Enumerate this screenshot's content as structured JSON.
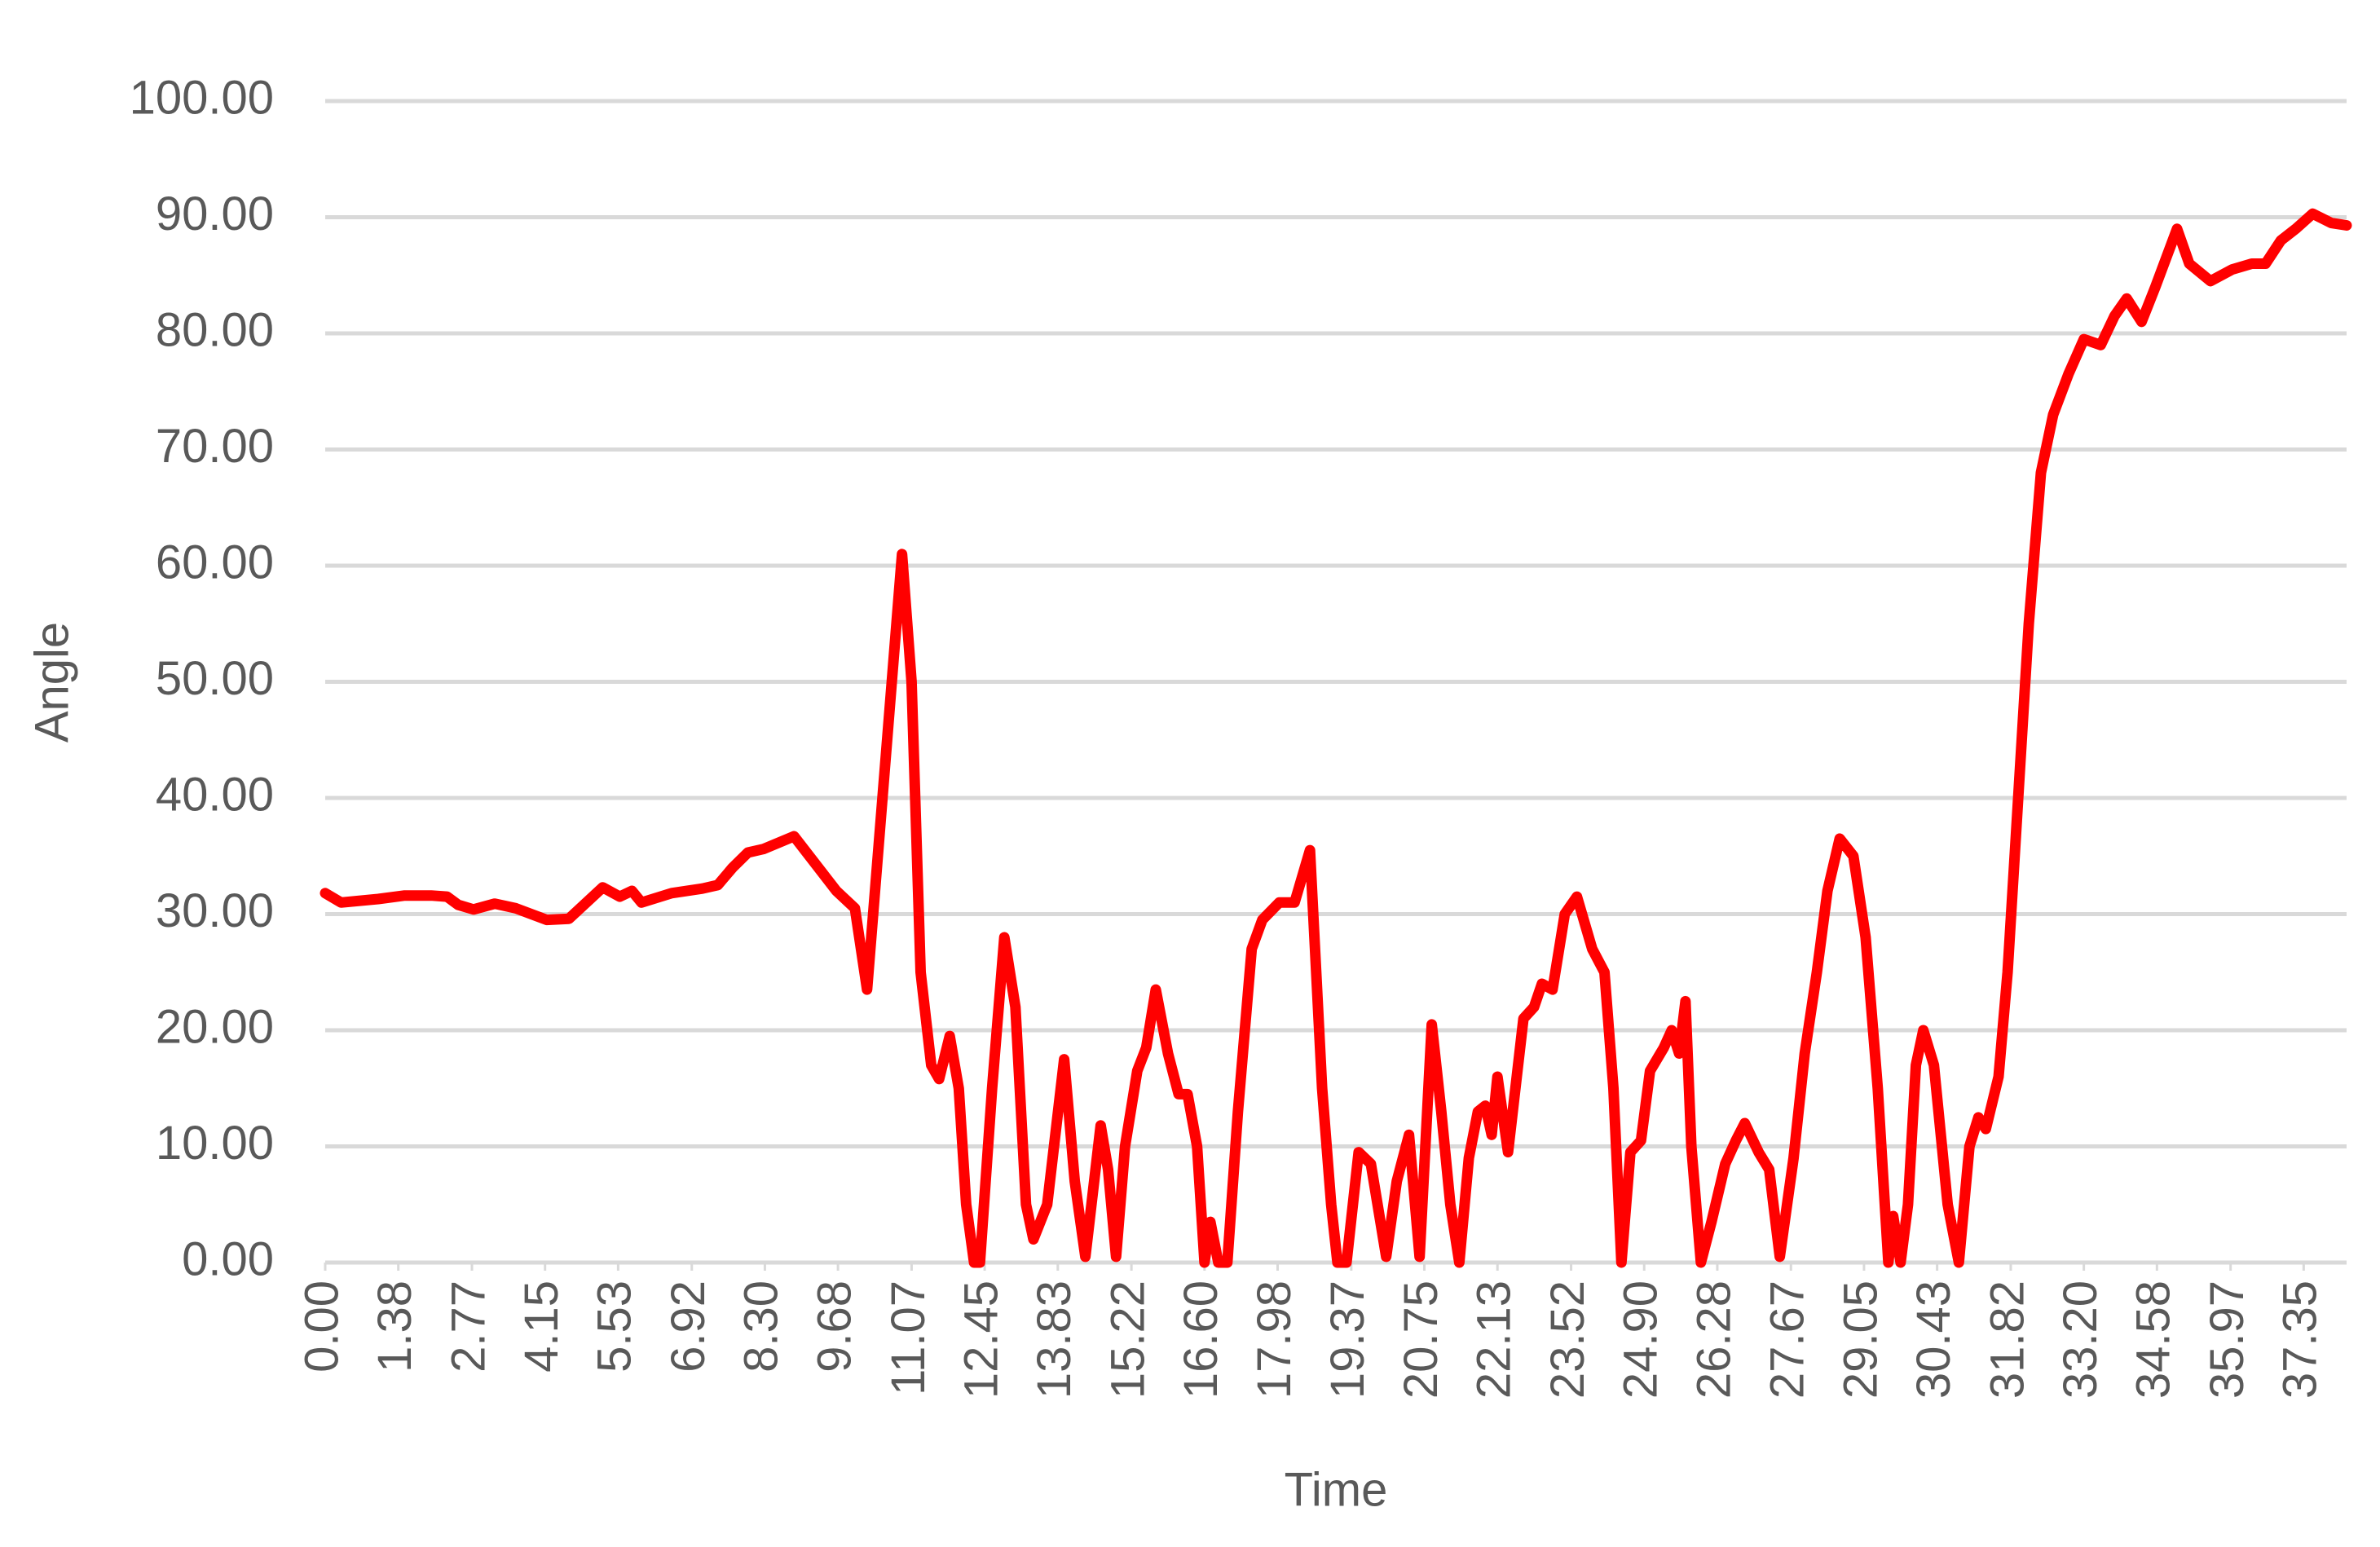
{
  "chart_data": {
    "type": "line",
    "x_label": "Time",
    "y_label": "Angle",
    "color": "#ff0000",
    "grid": true,
    "xlim": [
      0,
      38.16
    ],
    "ylim": [
      0,
      100
    ],
    "yticks": [
      {
        "value": 0,
        "label": "0.00"
      },
      {
        "value": 10,
        "label": "10.00"
      },
      {
        "value": 20,
        "label": "20.00"
      },
      {
        "value": 30,
        "label": "30.00"
      },
      {
        "value": 40,
        "label": "40.00"
      },
      {
        "value": 50,
        "label": "50.00"
      },
      {
        "value": 60,
        "label": "60.00"
      },
      {
        "value": 70,
        "label": "70.00"
      },
      {
        "value": 80,
        "label": "80.00"
      },
      {
        "value": 90,
        "label": "90.00"
      },
      {
        "value": 100,
        "label": "100.00"
      }
    ],
    "xticks": [
      {
        "value": 0,
        "label": "0.00"
      },
      1.38,
      2.77,
      4.15,
      5.53,
      6.92,
      {
        "value": 8.3,
        "label": "8.30"
      },
      9.68,
      11.07,
      12.45,
      13.83,
      15.22,
      {
        "value": 16.6,
        "label": "16.60"
      },
      17.98,
      19.37,
      20.75,
      22.13,
      23.52,
      {
        "value": 24.9,
        "label": "24.90"
      },
      26.28,
      27.67,
      29.05,
      30.43,
      31.82,
      {
        "value": 33.2,
        "label": "33.20"
      },
      34.58,
      35.97,
      37.35
    ],
    "x": [
      0,
      0.3,
      1.0,
      1.5,
      2.0,
      2.3,
      2.51,
      2.8,
      3.2,
      3.6,
      4.18,
      4.6,
      5.24,
      5.56,
      5.79,
      5.97,
      6.54,
      7.12,
      7.41,
      7.69,
      7.98,
      8.27,
      8.85,
      9.65,
      10.0,
      10.23,
      10.52,
      10.89,
      11.07,
      11.24,
      11.44,
      11.59,
      11.79,
      11.96,
      12.1,
      12.25,
      12.36,
      12.59,
      12.82,
      13.03,
      13.23,
      13.37,
      13.63,
      13.95,
      14.15,
      14.35,
      14.64,
      14.78,
      14.93,
      15.1,
      15.33,
      15.5,
      15.68,
      15.91,
      16.11,
      16.28,
      16.46,
      16.6,
      16.71,
      16.86,
      17.03,
      17.23,
      17.49,
      17.69,
      18.01,
      18.3,
      18.59,
      18.82,
      18.99,
      19.11,
      19.28,
      19.51,
      19.74,
      20.03,
      20.23,
      20.46,
      20.66,
      20.89,
      21.07,
      21.24,
      21.41,
      21.59,
      21.76,
      21.9,
      22.02,
      22.13,
      22.33,
      22.62,
      22.82,
      22.97,
      23.17,
      23.4,
      23.63,
      23.92,
      24.15,
      24.32,
      24.47,
      24.64,
      24.84,
      25.01,
      25.27,
      25.42,
      25.56,
      25.68,
      25.79,
      25.97,
      26.17,
      26.43,
      26.63,
      26.8,
      27.06,
      27.26,
      27.46,
      27.72,
      27.93,
      28.16,
      28.36,
      28.59,
      28.85,
      29.08,
      29.31,
      29.51,
      29.6,
      29.74,
      29.88,
      30.03,
      30.17,
      30.37,
      30.63,
      30.84,
      31.04,
      31.21,
      31.35,
      31.59,
      31.76,
      31.96,
      32.16,
      32.39,
      32.62,
      32.91,
      33.2,
      33.52,
      33.78,
      34.01,
      34.29,
      34.55,
      34.96,
      35.19,
      35.59,
      36.0,
      36.37,
      36.63,
      36.92,
      37.2,
      37.52,
      37.87,
      38.16
    ],
    "values": [
      31.8,
      31.0,
      31.3,
      31.6,
      31.6,
      31.5,
      30.8,
      30.4,
      30.9,
      30.5,
      29.5,
      29.6,
      32.3,
      31.5,
      32.0,
      31.0,
      31.8,
      32.2,
      32.5,
      34.0,
      35.3,
      35.6,
      36.7,
      32.0,
      30.5,
      23.5,
      40.0,
      61.0,
      50.0,
      25.0,
      17.0,
      15.8,
      19.5,
      15.0,
      5.0,
      0,
      0,
      15.0,
      28.0,
      22.0,
      5.0,
      2.0,
      5.0,
      17.5,
      7.0,
      0.5,
      11.8,
      8.0,
      0.5,
      10.0,
      16.5,
      18.5,
      23.5,
      18.0,
      14.5,
      14.5,
      10.0,
      0,
      3.5,
      0,
      0,
      13.0,
      27.0,
      29.5,
      31.0,
      31.0,
      35.5,
      15.0,
      5.0,
      0,
      0,
      9.5,
      8.5,
      0.5,
      7.0,
      11.0,
      0.5,
      20.5,
      13.0,
      5.0,
      0,
      9.0,
      13.0,
      13.5,
      11.0,
      16.0,
      9.5,
      21.0,
      22.0,
      24.0,
      23.5,
      30.0,
      31.5,
      27.0,
      25.0,
      15.0,
      0,
      9.5,
      10.5,
      16.5,
      18.5,
      20.0,
      18.0,
      22.5,
      10.0,
      0,
      3.5,
      8.5,
      10.5,
      12.0,
      9.5,
      8.0,
      0.5,
      9.0,
      18.0,
      25.0,
      32.0,
      36.5,
      35.0,
      28.0,
      15.0,
      0,
      4.0,
      0,
      5.0,
      17.0,
      20.0,
      17.0,
      5.0,
      0,
      10.0,
      12.5,
      11.5,
      16.0,
      25.0,
      40.0,
      55.0,
      68.0,
      73.0,
      76.5,
      79.5,
      79.0,
      81.5,
      83.0,
      81.0,
      84.0,
      89.0,
      86.0,
      84.5,
      85.5,
      86.0,
      86.0,
      88.0,
      89.0,
      90.3,
      89.5,
      89.3
    ]
  }
}
